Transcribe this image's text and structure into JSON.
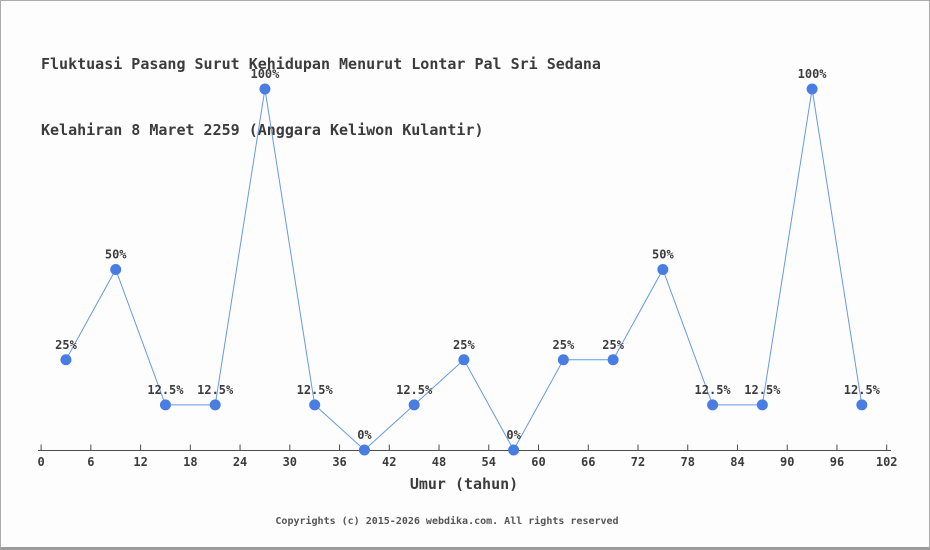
{
  "page": {
    "background": "#fdfdfd",
    "border_color": "#ababab"
  },
  "title": {
    "line1": "Fluktuasi Pasang Surut Kehidupan Menurut Lontar Pal Sri Sedana",
    "line2": "Kelahiran 8 Maret 2259 (Anggara Keliwon Kulantir)"
  },
  "footer": {
    "text": "Copyrights (c) 2015-2026 webdika.com. All rights reserved"
  },
  "chart_data": {
    "type": "line",
    "title": "Fluktuasi Pasang Surut Kehidupan Menurut Lontar Pal Sri Sedana Kelahiran 8 Maret 2259 (Anggara Keliwon Kulantir)",
    "xlabel": "Umur (tahun)",
    "ylabel": "",
    "x": [
      3,
      9,
      15,
      21,
      27,
      33,
      39,
      45,
      51,
      57,
      63,
      69,
      75,
      81,
      87,
      93,
      99
    ],
    "values": [
      25,
      50,
      12.5,
      12.5,
      100,
      12.5,
      0,
      12.5,
      25,
      0,
      25,
      25,
      50,
      12.5,
      12.5,
      100,
      12.5
    ],
    "point_labels": [
      "25%",
      "50%",
      "12.5%",
      "12.5%",
      "100%",
      "12.5%",
      "0%",
      "12.5%",
      "25%",
      "0%",
      "25%",
      "25%",
      "50%",
      "12.5%",
      "12.5%",
      "100%",
      "12.5%"
    ],
    "x_ticks": [
      0,
      6,
      12,
      18,
      24,
      30,
      36,
      42,
      48,
      54,
      60,
      66,
      72,
      78,
      84,
      90,
      96,
      102
    ],
    "xlim": [
      0,
      102
    ],
    "ylim": [
      0,
      100
    ],
    "grid": false,
    "legend": "none",
    "line_color": "#6699e6",
    "marker_color": "#4a7de2",
    "axis_color": "#4c4c4c",
    "label_color": "#3c3c3c"
  }
}
